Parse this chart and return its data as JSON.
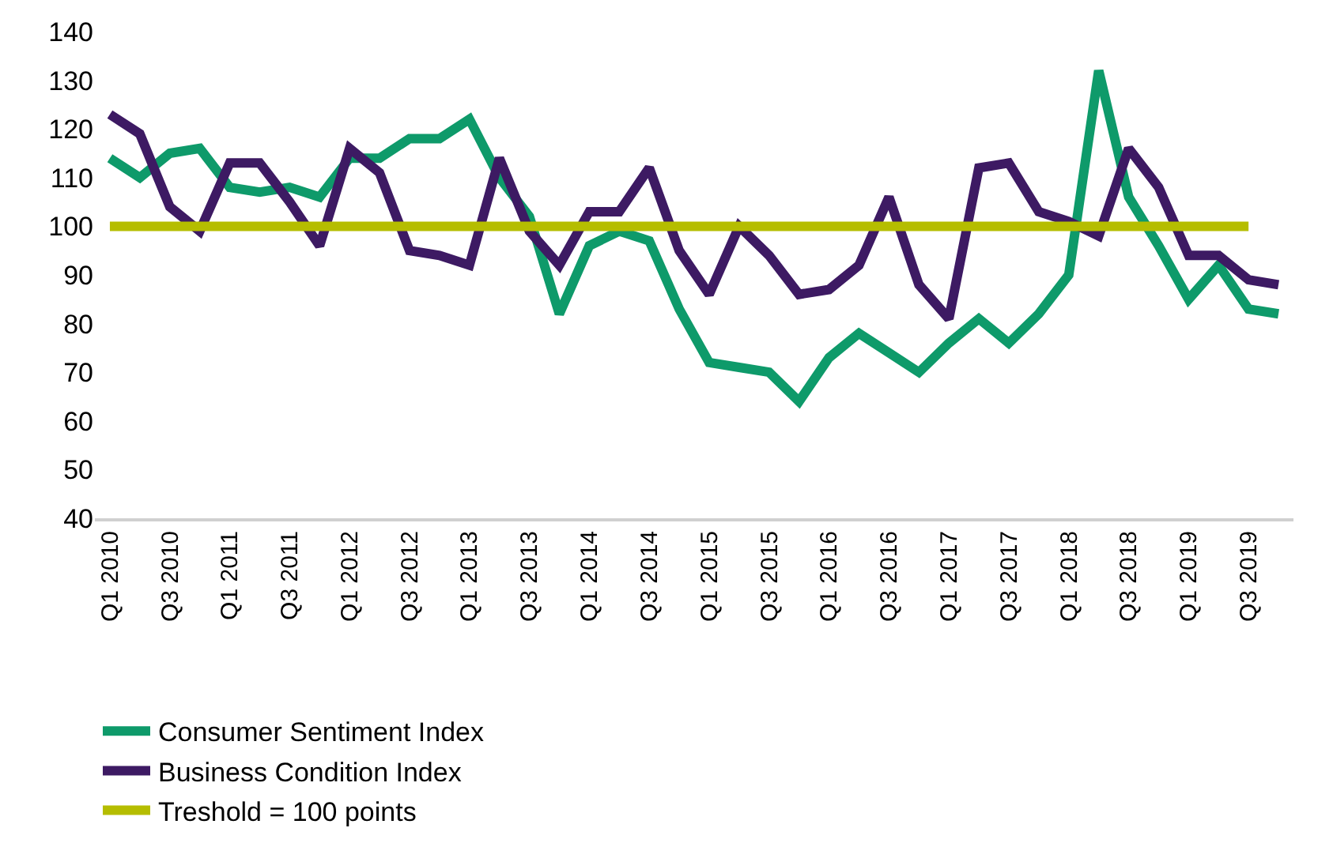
{
  "chart_data": {
    "type": "line",
    "categories": [
      "Q1 2010",
      null,
      "Q3 2010",
      null,
      "Q1 2011",
      null,
      "Q3 2011",
      null,
      "Q1 2012",
      null,
      "Q3 2012",
      null,
      "Q1 2013",
      null,
      "Q3 2013",
      null,
      "Q1 2014",
      null,
      "Q3 2014",
      null,
      "Q1 2015",
      null,
      "Q3 2015",
      null,
      "Q1 2016",
      null,
      "Q3 2016",
      null,
      "Q1 2017",
      null,
      "Q3 2017",
      null,
      "Q1 2018",
      null,
      "Q3 2018",
      null,
      "Q1 2019",
      null,
      "Q3 2019",
      null
    ],
    "series": [
      {
        "name": "Consumer Sentiment Index",
        "color": "#0e9a6a",
        "values": [
          114,
          110,
          115,
          116,
          108,
          107,
          108,
          106,
          114,
          114,
          118,
          118,
          122,
          110,
          102,
          82,
          96,
          99,
          97,
          83,
          72,
          71,
          70,
          64,
          73,
          78,
          74,
          70,
          76,
          81,
          76,
          82,
          90,
          132,
          106,
          96,
          85,
          92,
          83,
          82
        ]
      },
      {
        "name": "Business Condition Index",
        "color": "#3d1a63",
        "values": [
          123,
          119,
          104,
          99,
          113,
          113,
          105,
          96,
          116,
          111,
          95,
          94,
          92,
          114,
          99,
          92,
          103,
          103,
          112,
          95,
          86,
          100,
          94,
          86,
          87,
          92,
          106,
          88,
          81,
          112,
          113,
          103,
          101,
          98,
          116,
          108,
          94,
          94,
          89,
          88
        ]
      },
      {
        "name": "Treshold = 100 points",
        "color": "#b5bd00",
        "values": [
          100,
          100,
          100,
          100,
          100,
          100,
          100,
          100,
          100,
          100,
          100,
          100,
          100,
          100,
          100,
          100,
          100,
          100,
          100,
          100,
          100,
          100,
          100,
          100,
          100,
          100,
          100,
          100,
          100,
          100,
          100,
          100,
          100,
          100,
          100,
          100,
          100,
          100,
          100,
          null
        ]
      }
    ],
    "ylim": [
      40,
      140
    ],
    "yticks": [
      40,
      50,
      60,
      70,
      80,
      90,
      100,
      110,
      120,
      130,
      140
    ],
    "grid": false,
    "legend": "bottom",
    "line_style": "solid",
    "marker": "none"
  }
}
